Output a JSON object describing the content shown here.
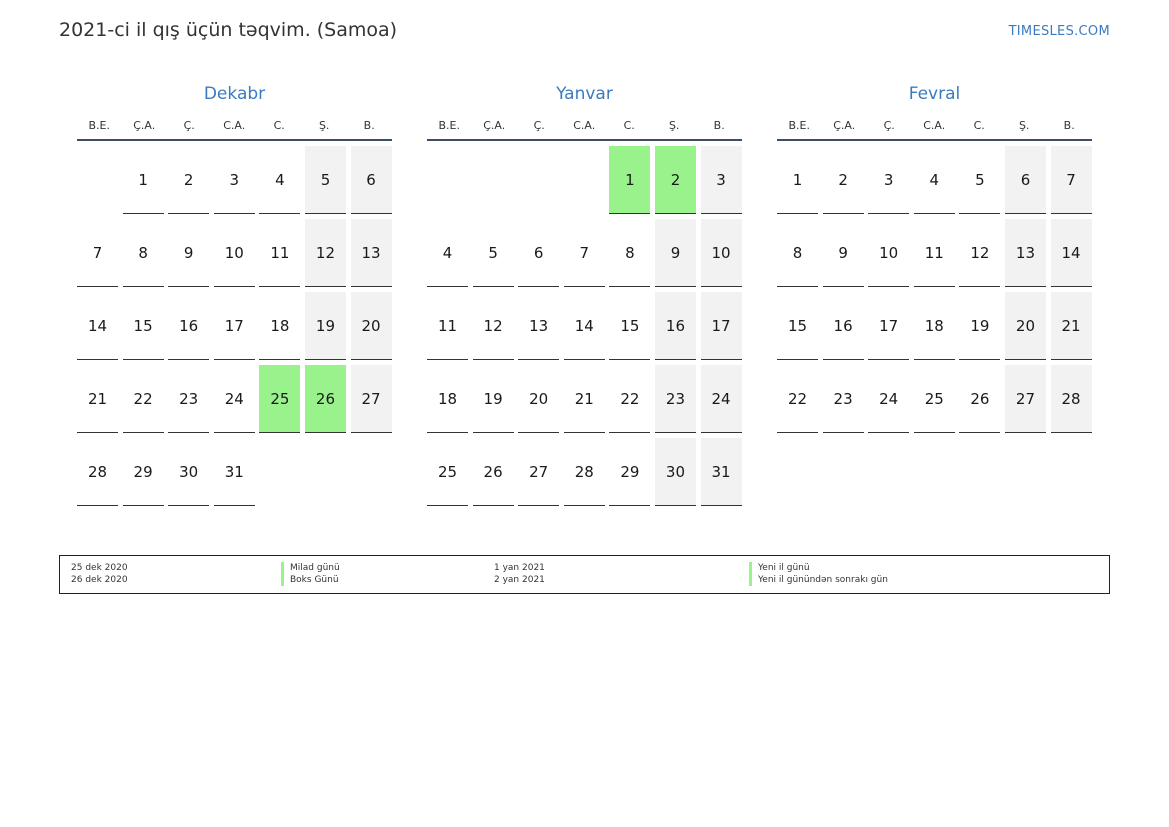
{
  "header": {
    "title": "2021-ci il qış üçün təqvim. (Samoa)",
    "site": "TIMESLES.COM"
  },
  "colors": {
    "accent": "#3a7bbf",
    "holiday": "#99f28c",
    "weekend": "#f2f2f2",
    "rule": "#3d4f66"
  },
  "weekdays": [
    "B.E.",
    "Ç.A.",
    "Ç.",
    "C.A.",
    "C.",
    "Ş.",
    "B."
  ],
  "months": [
    {
      "name": "Dekabr",
      "start_offset": 1,
      "days": 31,
      "holidays": [
        25,
        26
      ]
    },
    {
      "name": "Yanvar",
      "start_offset": 4,
      "days": 31,
      "holidays": [
        1,
        2
      ]
    },
    {
      "name": "Fevral",
      "start_offset": 0,
      "days": 28,
      "holidays": []
    }
  ],
  "legend": [
    {
      "date": "25 dek 2020",
      "name": "Milad günü"
    },
    {
      "date": "26 dek 2020",
      "name": "Boks Günü"
    },
    {
      "date": "1 yan 2021",
      "name": "Yeni il günü"
    },
    {
      "date": "2 yan 2021",
      "name": "Yeni il günündən sonrakı gün"
    }
  ]
}
